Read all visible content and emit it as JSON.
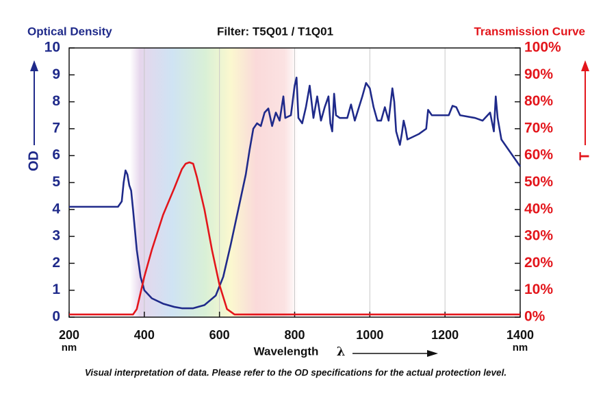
{
  "chart_data": {
    "type": "line",
    "title": "Filter: T5Q01 / T1Q01",
    "y_title": "Optical Density",
    "y2_title": "Transmission Curve",
    "y_label": "OD",
    "y2_label": "T",
    "x_label": "Wavelength",
    "x_symbol": "λ",
    "x_unit": "nm",
    "caption": "Visual interpretation of data. Please refer to the OD specifications for the actual protection level.",
    "xlim": [
      200,
      1400
    ],
    "xticks": [
      200,
      400,
      600,
      800,
      1000,
      1200,
      1400
    ],
    "ylim": [
      0,
      10
    ],
    "yticks": [
      0,
      1,
      2,
      3,
      4,
      5,
      6,
      7,
      8,
      9,
      10
    ],
    "y2lim": [
      0,
      100
    ],
    "y2ticks": [
      {
        "value": 0,
        "label": "0%"
      },
      {
        "value": 10,
        "label": "10%"
      },
      {
        "value": 20,
        "label": "20%"
      },
      {
        "value": 30,
        "label": "30%"
      },
      {
        "value": 40,
        "label": "40%"
      },
      {
        "value": 50,
        "label": "50%"
      },
      {
        "value": 60,
        "label": "60%"
      },
      {
        "value": 70,
        "label": "70%"
      },
      {
        "value": 80,
        "label": "80%"
      },
      {
        "value": 90,
        "label": "90%"
      },
      {
        "value": 100,
        "label": "100%"
      }
    ],
    "grid": true,
    "series": [
      {
        "color": "#1f2a8a",
        "x": [
          200,
          330,
          340,
          345,
          350,
          355,
          360,
          365,
          370,
          380,
          390,
          400,
          420,
          450,
          480,
          500,
          530,
          560,
          590,
          610,
          630,
          650,
          670,
          680,
          690,
          700,
          710,
          720,
          730,
          740,
          750,
          760,
          770,
          775,
          790,
          800,
          805,
          810,
          820,
          830,
          840,
          850,
          860,
          870,
          880,
          890,
          895,
          900,
          905,
          910,
          920,
          940,
          950,
          960,
          980,
          990,
          1000,
          1010,
          1020,
          1030,
          1040,
          1050,
          1060,
          1065,
          1070,
          1080,
          1085,
          1090,
          1095,
          1100,
          1130,
          1150,
          1155,
          1165,
          1210,
          1220,
          1230,
          1240,
          1280,
          1300,
          1320,
          1330,
          1335,
          1340,
          1350,
          1370,
          1400
        ],
        "values": [
          4.1,
          4.1,
          4.3,
          5.0,
          5.45,
          5.3,
          4.9,
          4.7,
          4.0,
          2.5,
          1.5,
          1.0,
          0.7,
          0.5,
          0.38,
          0.33,
          0.33,
          0.45,
          0.8,
          1.5,
          2.7,
          4.0,
          5.3,
          6.2,
          7.0,
          7.2,
          7.1,
          7.6,
          7.75,
          7.1,
          7.6,
          7.3,
          8.2,
          7.4,
          7.5,
          8.6,
          8.9,
          7.4,
          7.2,
          7.8,
          8.6,
          7.4,
          8.2,
          7.3,
          7.8,
          8.2,
          7.2,
          6.9,
          8.3,
          7.5,
          7.4,
          7.4,
          7.9,
          7.3,
          8.2,
          8.7,
          8.5,
          7.8,
          7.3,
          7.3,
          7.8,
          7.3,
          8.5,
          8.0,
          6.9,
          6.4,
          6.8,
          7.3,
          7.0,
          6.6,
          6.8,
          7.0,
          7.7,
          7.5,
          7.5,
          7.85,
          7.8,
          7.5,
          7.4,
          7.3,
          7.6,
          6.9,
          8.2,
          7.4,
          6.6,
          6.2,
          5.6
        ]
      },
      {
        "color": "#e3151b",
        "axis": "y2",
        "x": [
          200,
          370,
          380,
          400,
          420,
          450,
          480,
          500,
          510,
          520,
          530,
          540,
          560,
          580,
          600,
          620,
          640,
          1400
        ],
        "values": [
          1,
          1,
          3,
          15,
          25,
          38,
          48,
          55,
          57,
          57.5,
          57,
          52,
          40,
          25,
          12,
          3,
          1,
          1
        ]
      }
    ]
  }
}
